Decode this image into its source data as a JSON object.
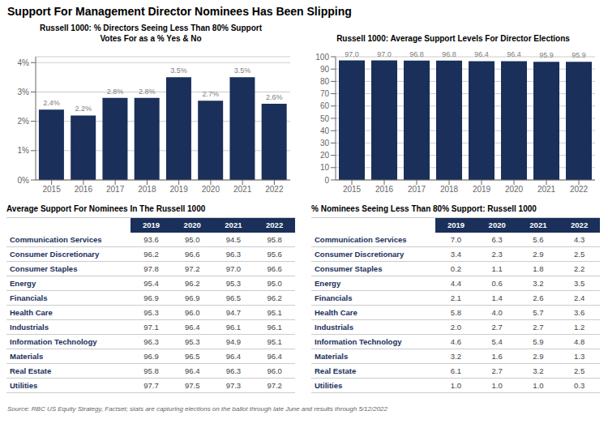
{
  "title": "Support For Management Director Nominees Has Been Slipping",
  "source": "Source: RBC US Equity Strategy, Factset; stats are capturing elections on the ballot through late June and results through 5/12/2022",
  "chart_data": [
    {
      "type": "bar",
      "title": "Russell 1000: % Directors Seeing Less Than 80% Support\nVotes For as a % Yes & No",
      "categories": [
        "2015",
        "2016",
        "2017",
        "2018",
        "2019",
        "2020",
        "2021",
        "2022"
      ],
      "values": [
        2.4,
        2.2,
        2.8,
        2.8,
        3.5,
        2.7,
        3.5,
        2.6
      ],
      "value_labels": [
        "2.4%",
        "2.2%",
        "2.8%",
        "2.8%",
        "3.5%",
        "2.7%",
        "3.5%",
        "2.6%"
      ],
      "data_labels": true,
      "color": "#1a2f5a",
      "ylim": [
        0,
        4.2
      ],
      "yticks": [
        {
          "value": 0,
          "label": "0%"
        },
        {
          "value": 1,
          "label": "1%"
        },
        {
          "value": 2,
          "label": "2%"
        },
        {
          "value": 3,
          "label": "3%"
        },
        {
          "value": 4,
          "label": "4%"
        }
      ],
      "grid": true
    },
    {
      "type": "bar",
      "title": "Russell 1000: Average Support Levels For Director Elections",
      "categories": [
        "2015",
        "2016",
        "2017",
        "2018",
        "2019",
        "2020",
        "2021",
        "2022"
      ],
      "values": [
        97.0,
        97.0,
        96.8,
        96.8,
        96.4,
        96.4,
        95.9,
        95.9
      ],
      "value_labels": [
        "97.0",
        "97.0",
        "96.8",
        "96.8",
        "96.4",
        "96.4",
        "95.9",
        "95.9"
      ],
      "data_labels": true,
      "color": "#1a2f5a",
      "ylim": [
        0,
        100
      ],
      "yticks": [
        0,
        10,
        20,
        30,
        40,
        50,
        60,
        70,
        80,
        90,
        100
      ],
      "grid": true
    },
    {
      "type": "table",
      "title": "Average Support For Nominees In The Russell 1000",
      "color": "#1a2f5a",
      "columns": [
        "2019",
        "2020",
        "2021",
        "2022"
      ],
      "row_labels": [
        "Communication Services",
        "Consumer Discretionary",
        "Consumer Staples",
        "Energy",
        "Financials",
        "Health Care",
        "Industrials",
        "Information Technology",
        "Materials",
        "Real Estate",
        "Utilities"
      ],
      "cells": [
        [
          "93.6",
          "95.0",
          "94.5",
          "95.8"
        ],
        [
          "96.2",
          "96.6",
          "96.3",
          "95.6"
        ],
        [
          "97.8",
          "97.2",
          "97.0",
          "96.6"
        ],
        [
          "95.4",
          "96.2",
          "95.3",
          "95.0"
        ],
        [
          "96.9",
          "96.9",
          "96.5",
          "96.2"
        ],
        [
          "95.3",
          "96.0",
          "94.7",
          "95.1"
        ],
        [
          "97.1",
          "96.4",
          "96.1",
          "96.1"
        ],
        [
          "96.3",
          "95.3",
          "94.9",
          "95.1"
        ],
        [
          "96.9",
          "96.5",
          "96.4",
          "96.4"
        ],
        [
          "95.8",
          "96.4",
          "96.3",
          "96.0"
        ],
        [
          "97.7",
          "97.5",
          "97.3",
          "97.2"
        ]
      ]
    },
    {
      "type": "table",
      "title": "% Nominees Seeing Less Than 80% Support: Russell 1000",
      "color": "#1a2f5a",
      "columns": [
        "2019",
        "2020",
        "2021",
        "2022"
      ],
      "row_labels": [
        "Communication Services",
        "Consumer Discretionary",
        "Consumer Staples",
        "Energy",
        "Financials",
        "Health Care",
        "Industrials",
        "Information Technology",
        "Materials",
        "Real Estate",
        "Utilities"
      ],
      "cells": [
        [
          "7.0",
          "6.3",
          "5.6",
          "4.3"
        ],
        [
          "3.4",
          "2.3",
          "2.9",
          "2.5"
        ],
        [
          "0.2",
          "1.1",
          "1.8",
          "2.2"
        ],
        [
          "4.4",
          "0.6",
          "3.2",
          "3.5"
        ],
        [
          "2.1",
          "1.4",
          "2.6",
          "2.4"
        ],
        [
          "5.8",
          "4.0",
          "5.7",
          "3.6"
        ],
        [
          "2.0",
          "2.7",
          "2.7",
          "1.2"
        ],
        [
          "4.6",
          "5.4",
          "5.9",
          "4.8"
        ],
        [
          "3.2",
          "1.6",
          "2.9",
          "1.3"
        ],
        [
          "6.1",
          "2.7",
          "3.2",
          "2.5"
        ],
        [
          "1.0",
          "1.0",
          "1.0",
          "0.3"
        ]
      ]
    }
  ]
}
